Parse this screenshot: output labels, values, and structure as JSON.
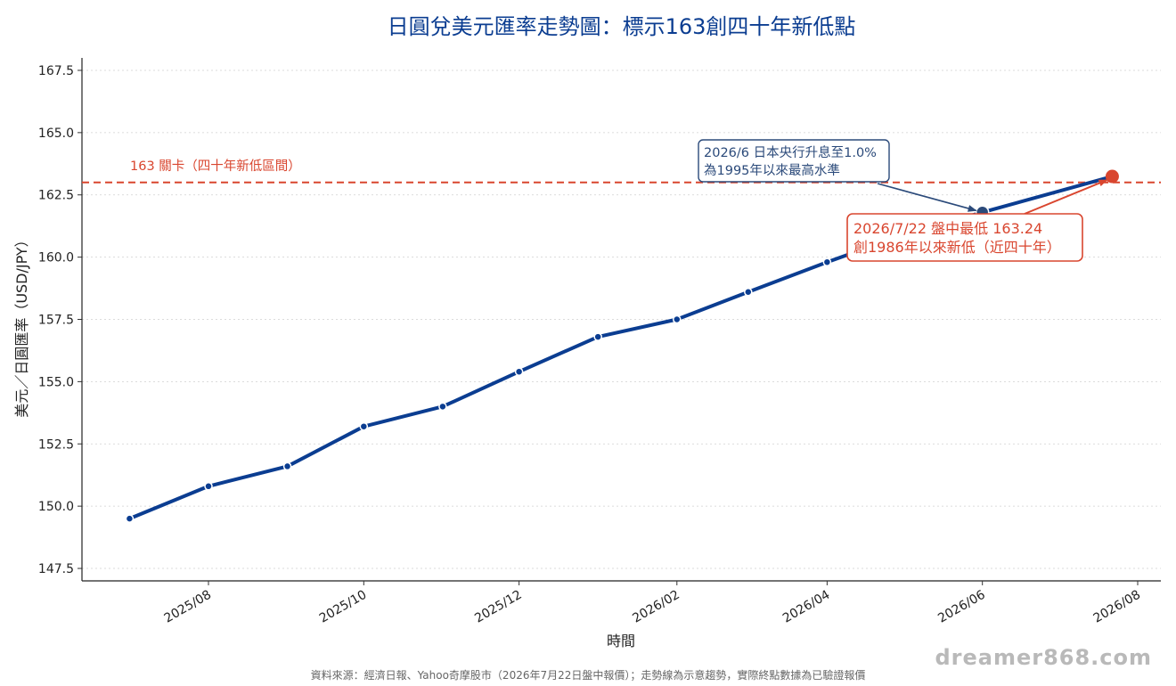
{
  "chart_data": {
    "type": "line",
    "title": "日圓兌美元匯率走勢圖：標示163創四十年新低點",
    "xlabel": "時間",
    "ylabel": "美元／日圓匯率（USD/JPY）",
    "ylim": [
      147.0,
      168.0
    ],
    "y_ticks": [
      147.5,
      150.0,
      152.5,
      155.0,
      157.5,
      160.0,
      162.5,
      165.0,
      167.5
    ],
    "y_tick_labels": [
      "147.5",
      "150.0",
      "152.5",
      "155.0",
      "157.5",
      "160.0",
      "162.5",
      "165.0",
      "167.5"
    ],
    "x_tick_labels": [
      "2025/08",
      "2025/10",
      "2025/12",
      "2026/02",
      "2026/04",
      "2026/06",
      "2026/08"
    ],
    "x_tick_dates": [
      "2025-08-01",
      "2025-10-01",
      "2025-12-01",
      "2026-02-01",
      "2026-04-01",
      "2026-06-01",
      "2026-08-01"
    ],
    "grid": "y-dotted",
    "series": [
      {
        "color": "#0b3d91",
        "x": [
          "2025-07-01",
          "2025-08-01",
          "2025-09-01",
          "2025-10-01",
          "2025-11-01",
          "2025-12-01",
          "2026-01-01",
          "2026-02-01",
          "2026-03-01",
          "2026-04-01",
          "2026-05-01",
          "2026-06-01",
          "2026-07-22"
        ],
        "values": [
          149.5,
          150.8,
          151.6,
          153.2,
          154.0,
          155.4,
          156.8,
          157.5,
          158.6,
          159.8,
          160.9,
          161.8,
          163.24
        ]
      }
    ],
    "reference_line": {
      "value": 163.0,
      "label": "163 關卡（四十年新低區間）",
      "color": "#d9462f",
      "style": "dashed"
    },
    "highlight_points": [
      {
        "x": "2026-06-01",
        "y": 161.8,
        "color": "#2b4a7a"
      },
      {
        "x": "2026-07-22",
        "y": 163.24,
        "color": "#d9462f"
      }
    ],
    "annotations": [
      {
        "lines": [
          "2026/6 日本央行升息至1.0%",
          "為1995年以來最高水準"
        ],
        "color": "#2b4a7a"
      },
      {
        "lines": [
          "2026/7/22 盤中最低 163.24",
          "創1986年以來新低（近四十年）"
        ],
        "color": "#d9462f"
      }
    ]
  },
  "footer": {
    "source": "資料來源：經濟日報、Yahoo奇摩股市（2026年7月22日盤中報價）；走勢線為示意趨勢，實際終點數據為已驗證報價",
    "watermark": "dreamer868.com"
  }
}
